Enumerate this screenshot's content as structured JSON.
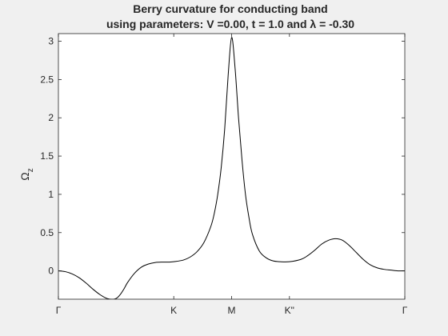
{
  "chart_data": {
    "type": "line",
    "title_lines": [
      "Berry curvature for conducting band",
      "using parameters: V =0.00, t = 1.0 and λ = -0.30"
    ],
    "ylabel_main": "Ω",
    "ylabel_sub": "z",
    "xlabel": "",
    "ylim": [
      -0.37,
      3.1
    ],
    "y_ticks": [
      "0",
      "0.5",
      "1",
      "1.5",
      "2",
      "2.5",
      "3"
    ],
    "x_ticks": [
      "Γ",
      "K",
      "M",
      "K\"",
      "Γ"
    ],
    "xlim": [
      0,
      1
    ],
    "x_tick_positions": [
      0,
      0.333,
      0.5,
      0.667,
      1
    ],
    "grid": false,
    "line_color": "#000000",
    "series": [
      {
        "x": [
          0,
          0.02,
          0.04,
          0.06,
          0.08,
          0.1,
          0.12,
          0.14,
          0.16,
          0.17,
          0.18,
          0.19,
          0.2,
          0.22,
          0.24,
          0.26,
          0.28,
          0.3,
          0.32,
          0.333,
          0.36,
          0.38,
          0.4,
          0.42,
          0.44,
          0.45,
          0.46,
          0.47,
          0.48,
          0.49,
          0.5,
          0.51,
          0.52,
          0.53,
          0.54,
          0.55,
          0.56,
          0.58,
          0.6,
          0.62,
          0.64,
          0.667,
          0.7,
          0.72,
          0.74,
          0.76,
          0.78,
          0.8,
          0.82,
          0.84,
          0.86,
          0.88,
          0.9,
          0.92,
          0.94,
          0.96,
          0.98,
          1.0
        ],
        "y": [
          0,
          -0.01,
          -0.04,
          -0.09,
          -0.16,
          -0.24,
          -0.31,
          -0.36,
          -0.37,
          -0.35,
          -0.3,
          -0.23,
          -0.15,
          -0.03,
          0.05,
          0.09,
          0.11,
          0.115,
          0.115,
          0.12,
          0.14,
          0.18,
          0.25,
          0.37,
          0.58,
          0.75,
          1.0,
          1.35,
          1.85,
          2.55,
          3.05,
          2.65,
          2.0,
          1.45,
          1.0,
          0.7,
          0.48,
          0.26,
          0.17,
          0.13,
          0.12,
          0.12,
          0.15,
          0.2,
          0.27,
          0.35,
          0.4,
          0.42,
          0.4,
          0.33,
          0.24,
          0.15,
          0.08,
          0.04,
          0.02,
          0.01,
          0.0,
          0.0
        ]
      }
    ]
  }
}
